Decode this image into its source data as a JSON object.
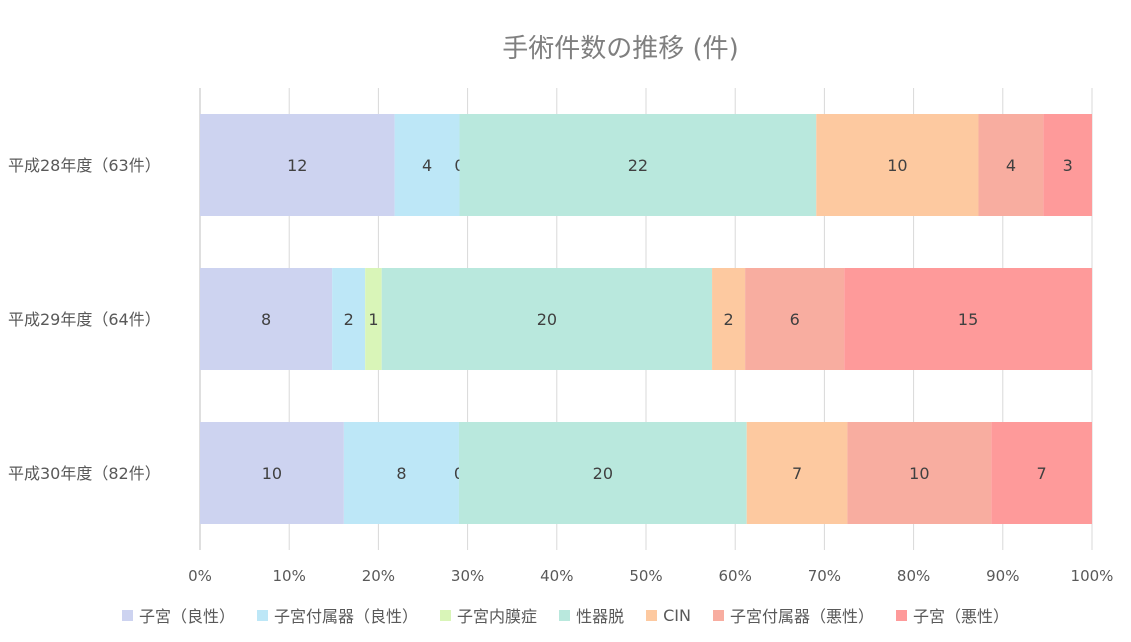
{
  "chart_data": {
    "type": "bar",
    "orientation": "horizontal",
    "stacked": "percent",
    "title": "手術件数の推移 (件)",
    "categories": [
      "平成28年度（63件）",
      "平成29年度（64件）",
      "平成30年度（82件）"
    ],
    "series": [
      {
        "name": "子宮（良性）",
        "color": "#cdd3f0",
        "values": [
          12,
          8,
          10
        ]
      },
      {
        "name": "子宮付属器（良性）",
        "color": "#bde7f7",
        "values": [
          4,
          2,
          8
        ]
      },
      {
        "name": "子宮内膜症",
        "color": "#d9f5b8",
        "values": [
          0,
          1,
          0
        ]
      },
      {
        "name": "性器脱",
        "color": "#b9e8dd",
        "values": [
          22,
          20,
          20
        ]
      },
      {
        "name": "CIN",
        "color": "#fdc9a0",
        "values": [
          10,
          2,
          7
        ]
      },
      {
        "name": "子宮付属器（悪性）",
        "color": "#f8ada0",
        "values": [
          4,
          6,
          10
        ]
      },
      {
        "name": "子宮（悪性）",
        "color": "#fe9a9a",
        "values": [
          3,
          15,
          7
        ]
      }
    ],
    "x_ticks": [
      "0%",
      "10%",
      "20%",
      "30%",
      "40%",
      "50%",
      "60%",
      "70%",
      "80%",
      "90%",
      "100%"
    ],
    "xlim": [
      0,
      100
    ],
    "grid": true,
    "legend": "bottom"
  }
}
